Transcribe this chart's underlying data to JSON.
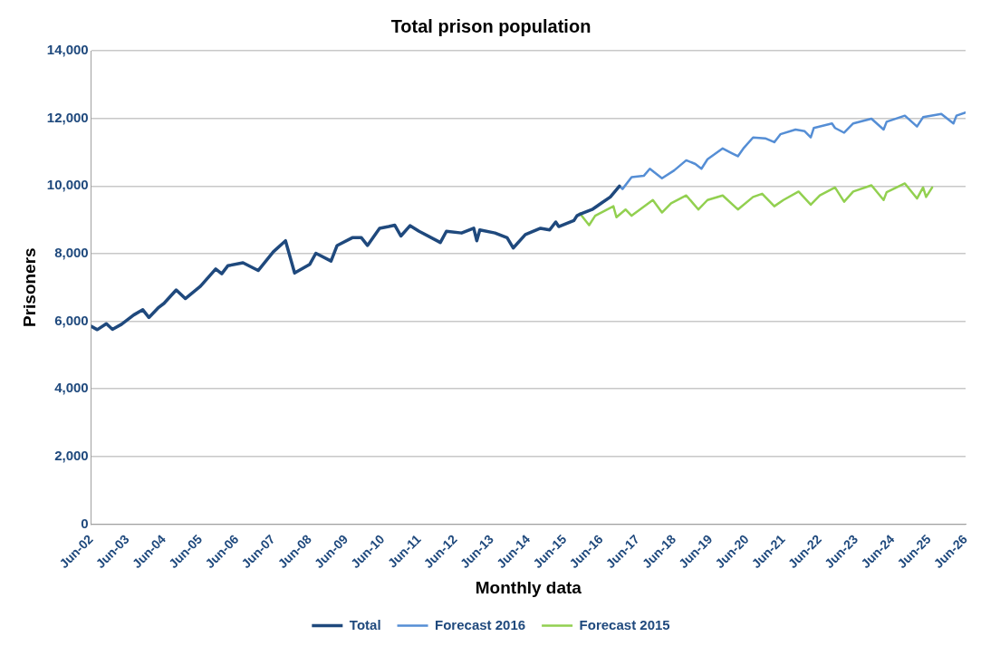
{
  "chart_data": {
    "type": "line",
    "title": "Total prison population",
    "xlabel": "Monthly data",
    "ylabel": "Prisoners",
    "xlim": [
      "2002-06",
      "2026-06"
    ],
    "xticks": [
      {
        "value": "2002-06",
        "label": "Jun-02"
      },
      {
        "value": "2003-06",
        "label": "Jun-03"
      },
      {
        "value": "2004-06",
        "label": "Jun-04"
      },
      {
        "value": "2005-06",
        "label": "Jun-05"
      },
      {
        "value": "2006-06",
        "label": "Jun-06"
      },
      {
        "value": "2007-06",
        "label": "Jun-07"
      },
      {
        "value": "2008-06",
        "label": "Jun-08"
      },
      {
        "value": "2009-06",
        "label": "Jun-09"
      },
      {
        "value": "2010-06",
        "label": "Jun-10"
      },
      {
        "value": "2011-06",
        "label": "Jun-11"
      },
      {
        "value": "2012-06",
        "label": "Jun-12"
      },
      {
        "value": "2013-06",
        "label": "Jun-13"
      },
      {
        "value": "2014-06",
        "label": "Jun-14"
      },
      {
        "value": "2015-06",
        "label": "Jun-15"
      },
      {
        "value": "2016-06",
        "label": "Jun-16"
      },
      {
        "value": "2017-06",
        "label": "Jun-17"
      },
      {
        "value": "2018-06",
        "label": "Jun-18"
      },
      {
        "value": "2019-06",
        "label": "Jun-19"
      },
      {
        "value": "2020-06",
        "label": "Jun-20"
      },
      {
        "value": "2021-06",
        "label": "Jun-21"
      },
      {
        "value": "2022-06",
        "label": "Jun-22"
      },
      {
        "value": "2023-06",
        "label": "Jun-23"
      },
      {
        "value": "2024-06",
        "label": "Jun-24"
      },
      {
        "value": "2025-06",
        "label": "Jun-25"
      },
      {
        "value": "2026-06",
        "label": "Jun-26"
      }
    ],
    "ylim": [
      0,
      14000
    ],
    "yticks": [
      0,
      {
        "value": 2000,
        "label": "2,000"
      },
      {
        "value": 4000,
        "label": "4,000"
      },
      {
        "value": 6000,
        "label": "6,000"
      },
      {
        "value": 8000,
        "label": "8,000"
      },
      {
        "value": 10000,
        "label": "10,000"
      },
      {
        "value": 12000,
        "label": "12,000"
      },
      {
        "value": 14000,
        "label": "14,000"
      }
    ],
    "grid": "y",
    "legend": "bottom",
    "marker": "none",
    "line_style": "solid",
    "series": [
      {
        "name": "Total",
        "color": "#1f497d",
        "x": [
          "2002-06",
          "2002-08",
          "2002-11",
          "2003-01",
          "2003-04",
          "2003-08",
          "2003-11",
          "2004-01",
          "2004-04",
          "2004-06",
          "2004-10",
          "2005-01",
          "2005-06",
          "2005-11",
          "2006-01",
          "2006-03",
          "2006-08",
          "2007-01",
          "2007-06",
          "2007-10",
          "2008-01",
          "2008-06",
          "2008-08",
          "2009-01",
          "2009-03",
          "2009-08",
          "2009-11",
          "2010-01",
          "2010-05",
          "2010-08",
          "2010-10",
          "2010-12",
          "2011-03",
          "2011-06",
          "2012-01",
          "2012-03",
          "2012-08",
          "2012-12",
          "2013-01",
          "2013-02",
          "2013-07",
          "2013-11",
          "2014-01",
          "2014-05",
          "2014-10",
          "2015-01",
          "2015-03",
          "2015-04",
          "2015-09",
          "2015-10",
          "2015-11",
          "2016-03",
          "2016-06",
          "2016-09",
          "2016-12"
        ],
        "values": [
          5850,
          5750,
          5925,
          5760,
          5910,
          6185,
          6340,
          6110,
          6390,
          6530,
          6925,
          6670,
          7035,
          7545,
          7405,
          7640,
          7730,
          7500,
          8055,
          8380,
          7425,
          7685,
          8010,
          7780,
          8240,
          8470,
          8470,
          8240,
          8750,
          8800,
          8840,
          8520,
          8825,
          8660,
          8330,
          8660,
          8610,
          8750,
          8380,
          8700,
          8610,
          8470,
          8165,
          8565,
          8750,
          8700,
          8935,
          8800,
          8980,
          9120,
          9165,
          9305,
          9490,
          9675,
          10000
        ]
      },
      {
        "name": "Forecast 2016",
        "color": "#558ed5",
        "x": [
          "2016-12",
          "2017-01",
          "2017-04",
          "2017-08",
          "2017-10",
          "2018-02",
          "2018-06",
          "2018-10",
          "2019-01",
          "2019-03",
          "2019-05",
          "2019-10",
          "2020-01",
          "2020-03",
          "2020-05",
          "2020-08",
          "2020-12",
          "2021-03",
          "2021-05",
          "2021-10",
          "2022-01",
          "2022-03",
          "2022-04",
          "2022-10",
          "2022-11",
          "2023-02",
          "2023-05",
          "2023-11",
          "2024-03",
          "2024-04",
          "2024-10",
          "2025-02",
          "2025-04",
          "2025-10",
          "2026-02",
          "2026-03",
          "2026-06"
        ],
        "values": [
          10000,
          9910,
          10260,
          10300,
          10510,
          10230,
          10460,
          10760,
          10650,
          10510,
          10790,
          11110,
          10970,
          10880,
          11130,
          11435,
          11410,
          11295,
          11530,
          11670,
          11620,
          11435,
          11715,
          11850,
          11715,
          11575,
          11850,
          11990,
          11670,
          11900,
          12080,
          11760,
          12035,
          12130,
          11850,
          12080,
          12175
        ]
      },
      {
        "name": "Forecast 2015",
        "color": "#92d050",
        "x": [
          "2015-11",
          "2016-02",
          "2016-04",
          "2016-10",
          "2016-11",
          "2017-02",
          "2017-04",
          "2017-11",
          "2018-02",
          "2018-05",
          "2018-10",
          "2019-02",
          "2019-05",
          "2019-10",
          "2020-03",
          "2020-08",
          "2020-11",
          "2021-03",
          "2021-06",
          "2021-11",
          "2022-03",
          "2022-06",
          "2022-11",
          "2023-02",
          "2023-05",
          "2023-11",
          "2024-03",
          "2024-04",
          "2024-10",
          "2025-02",
          "2025-04",
          "2025-05",
          "2025-07"
        ],
        "values": [
          9185,
          8840,
          9120,
          9400,
          9075,
          9305,
          9120,
          9585,
          9215,
          9490,
          9720,
          9305,
          9585,
          9720,
          9305,
          9675,
          9770,
          9400,
          9585,
          9835,
          9445,
          9720,
          9955,
          9535,
          9835,
          10020,
          9585,
          9815,
          10075,
          9630,
          9955,
          9675,
          9955
        ]
      }
    ]
  }
}
